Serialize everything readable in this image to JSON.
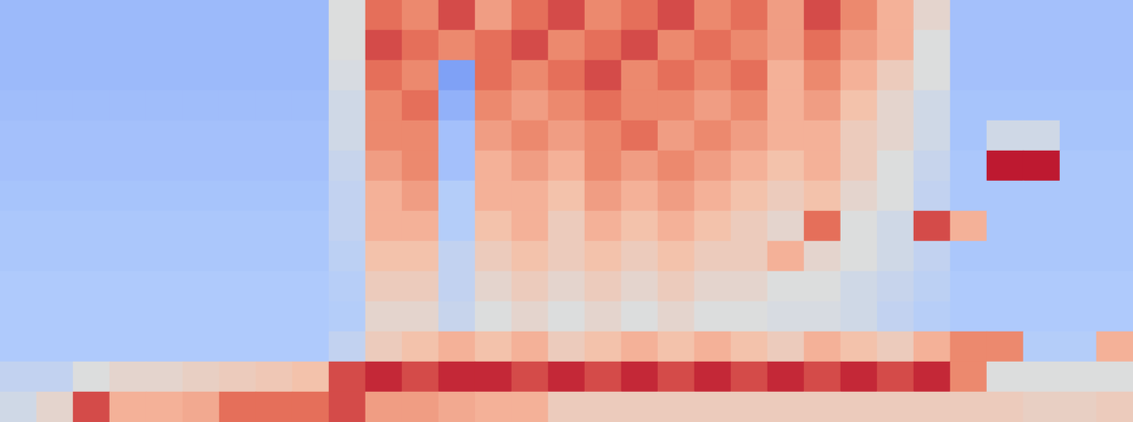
{
  "chart_data": {
    "type": "heatmap",
    "tick_labels": false,
    "vlim": [
      0,
      1
    ],
    "values": [
      [
        0.28,
        0.28,
        0.28,
        0.28,
        0.28,
        0.28,
        0.28,
        0.28,
        0.28,
        0.5,
        0.85,
        0.8,
        0.9,
        0.75,
        0.85,
        0.9,
        0.8,
        0.85,
        0.9,
        0.8,
        0.85,
        0.75,
        0.9,
        0.8,
        0.7,
        0.55,
        0.3,
        0.3,
        0.3,
        0.3,
        0.3
      ],
      [
        0.28,
        0.28,
        0.28,
        0.28,
        0.28,
        0.28,
        0.28,
        0.28,
        0.28,
        0.5,
        0.9,
        0.85,
        0.8,
        0.85,
        0.9,
        0.8,
        0.85,
        0.9,
        0.8,
        0.85,
        0.8,
        0.75,
        0.85,
        0.75,
        0.7,
        0.5,
        0.3,
        0.3,
        0.3,
        0.3,
        0.3
      ],
      [
        0.28,
        0.28,
        0.28,
        0.28,
        0.28,
        0.28,
        0.28,
        0.28,
        0.28,
        0.48,
        0.85,
        0.8,
        0.2,
        0.85,
        0.8,
        0.85,
        0.9,
        0.8,
        0.85,
        0.8,
        0.85,
        0.7,
        0.8,
        0.7,
        0.6,
        0.5,
        0.3,
        0.3,
        0.3,
        0.3,
        0.3
      ],
      [
        0.29,
        0.29,
        0.29,
        0.29,
        0.29,
        0.29,
        0.29,
        0.29,
        0.29,
        0.45,
        0.8,
        0.85,
        0.25,
        0.8,
        0.75,
        0.8,
        0.85,
        0.8,
        0.8,
        0.75,
        0.8,
        0.7,
        0.75,
        0.65,
        0.55,
        0.45,
        0.31,
        0.31,
        0.31,
        0.31,
        0.31
      ],
      [
        0.3,
        0.3,
        0.3,
        0.3,
        0.3,
        0.3,
        0.3,
        0.3,
        0.3,
        0.45,
        0.8,
        0.8,
        0.3,
        0.75,
        0.8,
        0.75,
        0.8,
        0.85,
        0.75,
        0.8,
        0.75,
        0.7,
        0.7,
        0.6,
        0.55,
        0.45,
        0.31,
        0.45,
        0.45,
        0.31,
        0.31
      ],
      [
        0.3,
        0.3,
        0.3,
        0.3,
        0.3,
        0.3,
        0.3,
        0.3,
        0.3,
        0.42,
        0.75,
        0.8,
        0.3,
        0.7,
        0.75,
        0.7,
        0.8,
        0.75,
        0.8,
        0.75,
        0.7,
        0.65,
        0.7,
        0.6,
        0.5,
        0.42,
        0.32,
        0.97,
        0.97,
        0.32,
        0.32
      ],
      [
        0.31,
        0.31,
        0.31,
        0.31,
        0.31,
        0.31,
        0.31,
        0.31,
        0.31,
        0.4,
        0.7,
        0.75,
        0.35,
        0.7,
        0.7,
        0.65,
        0.75,
        0.7,
        0.75,
        0.7,
        0.65,
        0.6,
        0.65,
        0.55,
        0.5,
        0.4,
        0.32,
        0.32,
        0.32,
        0.32,
        0.32
      ],
      [
        0.32,
        0.32,
        0.32,
        0.32,
        0.32,
        0.32,
        0.32,
        0.32,
        0.32,
        0.4,
        0.7,
        0.7,
        0.35,
        0.65,
        0.7,
        0.6,
        0.7,
        0.65,
        0.7,
        0.65,
        0.6,
        0.55,
        0.85,
        0.5,
        0.45,
        0.9,
        0.7,
        0.32,
        0.32,
        0.32,
        0.32
      ],
      [
        0.32,
        0.32,
        0.32,
        0.32,
        0.32,
        0.32,
        0.32,
        0.32,
        0.32,
        0.38,
        0.65,
        0.65,
        0.4,
        0.6,
        0.65,
        0.6,
        0.65,
        0.6,
        0.65,
        0.6,
        0.6,
        0.7,
        0.55,
        0.5,
        0.45,
        0.4,
        0.32,
        0.32,
        0.32,
        0.32,
        0.32
      ],
      [
        0.33,
        0.33,
        0.33,
        0.33,
        0.33,
        0.33,
        0.33,
        0.33,
        0.33,
        0.36,
        0.6,
        0.6,
        0.4,
        0.55,
        0.6,
        0.55,
        0.6,
        0.55,
        0.6,
        0.55,
        0.55,
        0.5,
        0.5,
        0.45,
        0.42,
        0.38,
        0.33,
        0.33,
        0.33,
        0.33,
        0.33
      ],
      [
        0.33,
        0.33,
        0.33,
        0.33,
        0.33,
        0.33,
        0.33,
        0.33,
        0.33,
        0.35,
        0.55,
        0.55,
        0.42,
        0.5,
        0.55,
        0.5,
        0.55,
        0.5,
        0.55,
        0.5,
        0.5,
        0.48,
        0.48,
        0.45,
        0.4,
        0.36,
        0.33,
        0.33,
        0.33,
        0.33,
        0.33
      ],
      [
        0.33,
        0.33,
        0.33,
        0.33,
        0.33,
        0.33,
        0.33,
        0.33,
        0.33,
        0.4,
        0.6,
        0.65,
        0.7,
        0.65,
        0.7,
        0.6,
        0.65,
        0.7,
        0.65,
        0.7,
        0.65,
        0.6,
        0.7,
        0.65,
        0.6,
        0.7,
        0.8,
        0.8,
        0.35,
        0.35,
        0.7
      ],
      [
        0.4,
        0.4,
        0.5,
        0.55,
        0.55,
        0.58,
        0.6,
        0.62,
        0.65,
        0.9,
        0.95,
        0.9,
        0.95,
        0.95,
        0.9,
        0.95,
        0.9,
        0.95,
        0.9,
        0.95,
        0.9,
        0.95,
        0.9,
        0.95,
        0.9,
        0.95,
        0.8,
        0.5,
        0.5,
        0.5,
        0.5
      ],
      [
        0.45,
        0.55,
        0.9,
        0.7,
        0.7,
        0.72,
        0.85,
        0.85,
        0.85,
        0.9,
        0.75,
        0.75,
        0.72,
        0.7,
        0.7,
        0.6,
        0.6,
        0.6,
        0.6,
        0.6,
        0.6,
        0.6,
        0.6,
        0.6,
        0.6,
        0.6,
        0.6,
        0.6,
        0.58,
        0.58,
        0.6
      ]
    ]
  }
}
